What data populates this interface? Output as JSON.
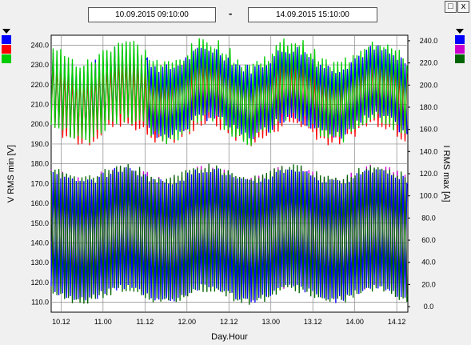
{
  "toolbar": {
    "date_from": "10.09.2015    09:10:00",
    "separator": "-",
    "date_to": "14.09.2015    15:10:00",
    "restore_glyph": "□",
    "close_glyph": "x"
  },
  "legend_left": {
    "icon": "chevron-down-icon",
    "colors": [
      "#0000ff",
      "#ff0000",
      "#00cc00"
    ]
  },
  "legend_right": {
    "icon": "chevron-down-icon",
    "colors": [
      "#0000ff",
      "#cc00cc",
      "#006600"
    ]
  },
  "chart_data": {
    "type": "line",
    "xlabel": "Day.Hour",
    "x_ticks": [
      "10.12",
      "11.00",
      "11.12",
      "12.00",
      "12.12",
      "13.00",
      "13.12",
      "14.00",
      "14.12"
    ],
    "x_range_hours_from_10.09_00:00": [
      9.17,
      111.17
    ],
    "y_left": {
      "label": "V RMS min [V]",
      "range": [
        105,
        245
      ],
      "ticks": [
        "110.0",
        "120.0",
        "130.0",
        "140.0",
        "150.0",
        "160.0",
        "170.0",
        "180.0",
        "190.0",
        "200.0",
        "210.0",
        "220.0",
        "230.0",
        "240.0"
      ]
    },
    "y_right": {
      "label": "I RMS max [A]",
      "range": [
        -5,
        245
      ],
      "ticks": [
        "0.0",
        "20.0",
        "40.0",
        "60.0",
        "80.0",
        "100.0",
        "120.0",
        "140.0",
        "160.0",
        "180.0",
        "200.0",
        "220.0",
        "240.0"
      ]
    },
    "grid": true,
    "series": [
      {
        "color": "#0000ff",
        "axis": "left",
        "high": 233,
        "low": 199,
        "amplitude": 5
      },
      {
        "color": "#ff0000",
        "axis": "left",
        "high": 230,
        "low": 196,
        "amplitude": 5
      },
      {
        "color": "#00cc00",
        "axis": "left",
        "high": 236,
        "low": 198,
        "amplitude": 6
      },
      {
        "color": "#0000ff",
        "axis": "right",
        "high": 118,
        "low": 12,
        "amplitude": 6
      },
      {
        "color": "#cc00cc",
        "axis": "right",
        "high": 120,
        "low": 14,
        "amplitude": 6
      },
      {
        "color": "#006600",
        "axis": "right",
        "high": 121,
        "low": 10,
        "amplitude": 6
      }
    ]
  }
}
